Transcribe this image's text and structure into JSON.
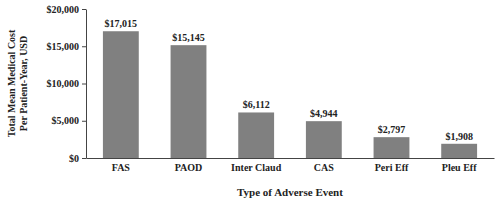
{
  "chart_data": {
    "type": "bar",
    "y_label": "Total Mean Medical Cost Per Patient-Year, USD",
    "x_label": "Type of Adverse Event",
    "categories": [
      "FAS",
      "PAOD",
      "Inter Claud",
      "CAS",
      "Peri Eff",
      "Pleu Eff"
    ],
    "values": [
      17015,
      15145,
      6112,
      4944,
      2797,
      1908
    ],
    "value_labels": [
      "$17,015",
      "$15,145",
      "$6,112",
      "$4,944",
      "$2,797",
      "$1,908"
    ],
    "data_labels": true,
    "color": "#808080",
    "ylim": [
      0,
      20000
    ],
    "yticks": [
      {
        "value": 0,
        "label": "$0"
      },
      {
        "value": 5000,
        "label": "$5,000"
      },
      {
        "value": 10000,
        "label": "$10,000"
      },
      {
        "value": 15000,
        "label": "$15,000"
      },
      {
        "value": 20000,
        "label": "$20,000"
      }
    ],
    "grid": false
  }
}
